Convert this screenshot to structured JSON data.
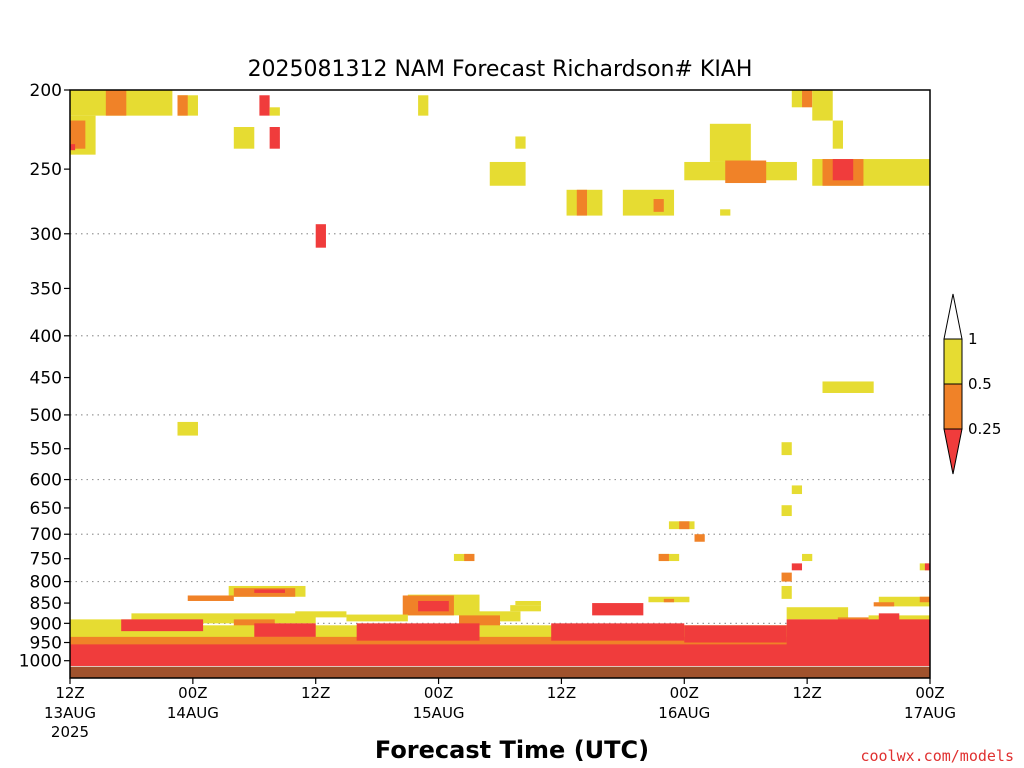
{
  "chart_data": {
    "type": "heatmap",
    "title": "2025081312 NAM Forecast Richardson# KIAH",
    "xlabel": "Forecast Time (UTC)",
    "credit": "coolwx.com/models",
    "y_scale": "log",
    "y_inverted": true,
    "ylim": [
      200,
      1050
    ],
    "y_ticks": [
      200,
      250,
      300,
      350,
      400,
      450,
      500,
      550,
      600,
      650,
      700,
      750,
      800,
      850,
      900,
      950,
      1000
    ],
    "y_gridlines": [
      300,
      400,
      500,
      600,
      700,
      800,
      900
    ],
    "xlim_hours": [
      0,
      84
    ],
    "x_ticks": [
      {
        "hour": 0,
        "label": "12Z",
        "date": "13AUG",
        "year": "2025"
      },
      {
        "hour": 12,
        "label": "00Z",
        "date": "14AUG",
        "year": ""
      },
      {
        "hour": 24,
        "label": "12Z",
        "date": "",
        "year": ""
      },
      {
        "hour": 36,
        "label": "00Z",
        "date": "15AUG",
        "year": ""
      },
      {
        "hour": 48,
        "label": "12Z",
        "date": "",
        "year": ""
      },
      {
        "hour": 60,
        "label": "00Z",
        "date": "16AUG",
        "year": ""
      },
      {
        "hour": 72,
        "label": "12Z",
        "date": "",
        "year": ""
      },
      {
        "hour": 84,
        "label": "00Z",
        "date": "17AUG",
        "year": ""
      }
    ],
    "legend": {
      "placement": "right",
      "labels": [
        "1",
        "0.5",
        "0.25"
      ],
      "bins": [
        {
          "range": "0.5-1",
          "color": "#e6dc32"
        },
        {
          "range": "0.25-0.5",
          "color": "#f08228"
        },
        {
          "range": "<0.25",
          "color": "#f03c3c"
        }
      ],
      "over_color": "#ffffff"
    },
    "colors": {
      "yellow": "#e6dc32",
      "orange": "#f08228",
      "red": "#f03c3c",
      "ground": "#a0522d"
    },
    "cells": [
      {
        "c": "y",
        "t": [
          0,
          10
        ],
        "p": [
          200,
          215
        ]
      },
      {
        "c": "o",
        "t": [
          3.5,
          5.5
        ],
        "p": [
          200,
          215
        ]
      },
      {
        "c": "y",
        "t": [
          10.5,
          12.5
        ],
        "p": [
          203,
          215
        ]
      },
      {
        "c": "o",
        "t": [
          10.5,
          11.5
        ],
        "p": [
          203,
          215
        ]
      },
      {
        "c": "r",
        "t": [
          18.5,
          19.5
        ],
        "p": [
          203,
          215
        ]
      },
      {
        "c": "y",
        "t": [
          19.5,
          20.5
        ],
        "p": [
          210,
          215
        ]
      },
      {
        "c": "y",
        "t": [
          0,
          2.5
        ],
        "p": [
          215,
          240
        ]
      },
      {
        "c": "o",
        "t": [
          0,
          1.5
        ],
        "p": [
          218,
          236
        ]
      },
      {
        "c": "r",
        "t": [
          0,
          0.5
        ],
        "p": [
          233,
          237
        ]
      },
      {
        "c": "y",
        "t": [
          16,
          18
        ],
        "p": [
          222,
          236
        ]
      },
      {
        "c": "r",
        "t": [
          19.5,
          20.5
        ],
        "p": [
          222,
          236
        ]
      },
      {
        "c": "y",
        "t": [
          34,
          35
        ],
        "p": [
          203,
          215
        ]
      },
      {
        "c": "y",
        "t": [
          43.5,
          44.5
        ],
        "p": [
          228,
          236
        ]
      },
      {
        "c": "y",
        "t": [
          41,
          44.5
        ],
        "p": [
          245,
          262
        ]
      },
      {
        "c": "y",
        "t": [
          48.5,
          52
        ],
        "p": [
          265,
          285
        ]
      },
      {
        "c": "o",
        "t": [
          49.5,
          50.5
        ],
        "p": [
          265,
          285
        ]
      },
      {
        "c": "y",
        "t": [
          54,
          59
        ],
        "p": [
          265,
          285
        ]
      },
      {
        "c": "o",
        "t": [
          57,
          58
        ],
        "p": [
          272,
          282
        ]
      },
      {
        "c": "y",
        "t": [
          60,
          71
        ],
        "p": [
          245,
          258
        ]
      },
      {
        "c": "y",
        "t": [
          62.5,
          66.5
        ],
        "p": [
          220,
          245
        ]
      },
      {
        "c": "o",
        "t": [
          64,
          68
        ],
        "p": [
          244,
          260
        ]
      },
      {
        "c": "y",
        "t": [
          63.5,
          64.5
        ],
        "p": [
          280,
          285
        ]
      },
      {
        "c": "y",
        "t": [
          70.5,
          71.5
        ],
        "p": [
          200,
          210
        ]
      },
      {
        "c": "o",
        "t": [
          71.5,
          72.5
        ],
        "p": [
          200,
          210
        ]
      },
      {
        "c": "y",
        "t": [
          72.5,
          74.5
        ],
        "p": [
          200,
          218
        ]
      },
      {
        "c": "y",
        "t": [
          74.5,
          75.5
        ],
        "p": [
          218,
          236
        ]
      },
      {
        "c": "y",
        "t": [
          72.5,
          84
        ],
        "p": [
          243,
          262
        ]
      },
      {
        "c": "o",
        "t": [
          73.5,
          77.5
        ],
        "p": [
          243,
          262
        ]
      },
      {
        "c": "r",
        "t": [
          74.5,
          76.5
        ],
        "p": [
          243,
          258
        ]
      },
      {
        "c": "r",
        "t": [
          24,
          25
        ],
        "p": [
          292,
          312
        ]
      },
      {
        "c": "y",
        "t": [
          10.5,
          12.5
        ],
        "p": [
          510,
          530
        ]
      },
      {
        "c": "y",
        "t": [
          73.5,
          78.5
        ],
        "p": [
          455,
          470
        ]
      },
      {
        "c": "y",
        "t": [
          69.5,
          70.5
        ],
        "p": [
          540,
          560
        ]
      },
      {
        "c": "y",
        "t": [
          70.5,
          71.5
        ],
        "p": [
          610,
          625
        ]
      },
      {
        "c": "y",
        "t": [
          69.5,
          70.5
        ],
        "p": [
          645,
          665
        ]
      },
      {
        "c": "y",
        "t": [
          58.5,
          61
        ],
        "p": [
          675,
          690
        ]
      },
      {
        "c": "o",
        "t": [
          59.5,
          60.5
        ],
        "p": [
          675,
          690
        ]
      },
      {
        "c": "o",
        "t": [
          61,
          62
        ],
        "p": [
          700,
          715
        ]
      },
      {
        "c": "y",
        "t": [
          37.5,
          39.5
        ],
        "p": [
          740,
          755
        ]
      },
      {
        "c": "o",
        "t": [
          38.5,
          39.5
        ],
        "p": [
          740,
          755
        ]
      },
      {
        "c": "y",
        "t": [
          57.5,
          59.5
        ],
        "p": [
          740,
          755
        ]
      },
      {
        "c": "o",
        "t": [
          57.5,
          58.5
        ],
        "p": [
          740,
          755
        ]
      },
      {
        "c": "y",
        "t": [
          71.5,
          72.5
        ],
        "p": [
          740,
          755
        ]
      },
      {
        "c": "r",
        "t": [
          70.5,
          71.5
        ],
        "p": [
          760,
          775
        ]
      },
      {
        "c": "y",
        "t": [
          83,
          84
        ],
        "p": [
          760,
          775
        ]
      },
      {
        "c": "r",
        "t": [
          83.5,
          84
        ],
        "p": [
          760,
          775
        ]
      },
      {
        "c": "o",
        "t": [
          69.5,
          70.5
        ],
        "p": [
          780,
          800
        ]
      },
      {
        "c": "y",
        "t": [
          69.5,
          70.5
        ],
        "p": [
          810,
          840
        ]
      },
      {
        "c": "y",
        "t": [
          15.5,
          23
        ],
        "p": [
          810,
          835
        ]
      },
      {
        "c": "o",
        "t": [
          16,
          22
        ],
        "p": [
          815,
          835
        ]
      },
      {
        "c": "r",
        "t": [
          18,
          21
        ],
        "p": [
          818,
          826
        ]
      },
      {
        "c": "o",
        "t": [
          11.5,
          16
        ],
        "p": [
          832,
          845
        ]
      },
      {
        "c": "y",
        "t": [
          33,
          40
        ],
        "p": [
          830,
          880
        ]
      },
      {
        "c": "o",
        "t": [
          32.5,
          37.5
        ],
        "p": [
          832,
          880
        ]
      },
      {
        "c": "r",
        "t": [
          34,
          37
        ],
        "p": [
          845,
          870
        ]
      },
      {
        "c": "y",
        "t": [
          43.5,
          46
        ],
        "p": [
          845,
          855
        ]
      },
      {
        "c": "y",
        "t": [
          56.5,
          60.5
        ],
        "p": [
          835,
          848
        ]
      },
      {
        "c": "o",
        "t": [
          58,
          59
        ],
        "p": [
          840,
          848
        ]
      },
      {
        "c": "y",
        "t": [
          79,
          84
        ],
        "p": [
          835,
          858
        ]
      },
      {
        "c": "o",
        "t": [
          78.5,
          80.5
        ],
        "p": [
          848,
          858
        ]
      },
      {
        "c": "o",
        "t": [
          83,
          84
        ],
        "p": [
          835,
          848
        ]
      },
      {
        "c": "y",
        "t": [
          0,
          6
        ],
        "p": [
          890,
          910
        ]
      },
      {
        "c": "y",
        "t": [
          6,
          24
        ],
        "p": [
          875,
          900
        ]
      },
      {
        "c": "y",
        "t": [
          22,
          27
        ],
        "p": [
          870,
          885
        ]
      },
      {
        "c": "y",
        "t": [
          27,
          33
        ],
        "p": [
          878,
          895
        ]
      },
      {
        "c": "y",
        "t": [
          38,
          44
        ],
        "p": [
          870,
          895
        ]
      },
      {
        "c": "y",
        "t": [
          43,
          46
        ],
        "p": [
          855,
          870
        ]
      },
      {
        "c": "o",
        "t": [
          38,
          42
        ],
        "p": [
          880,
          915
        ]
      },
      {
        "c": "o",
        "t": [
          16,
          20
        ],
        "p": [
          890,
          912
        ]
      },
      {
        "c": "y",
        "t": [
          70,
          76
        ],
        "p": [
          860,
          890
        ]
      },
      {
        "c": "y",
        "t": [
          78,
          84
        ],
        "p": [
          880,
          910
        ]
      },
      {
        "c": "o",
        "t": [
          75,
          78
        ],
        "p": [
          885,
          905
        ]
      },
      {
        "c": "r",
        "t": [
          79,
          81
        ],
        "p": [
          875,
          895
        ]
      },
      {
        "c": "y",
        "t": [
          0,
          84
        ],
        "p": [
          905,
          980
        ]
      },
      {
        "c": "o",
        "t": [
          0,
          84
        ],
        "p": [
          935,
          990
        ]
      },
      {
        "c": "r",
        "t": [
          0,
          84
        ],
        "p": [
          955,
          1015
        ]
      },
      {
        "c": "r",
        "t": [
          5,
          13
        ],
        "p": [
          890,
          920
        ]
      },
      {
        "c": "r",
        "t": [
          18,
          24
        ],
        "p": [
          900,
          935
        ]
      },
      {
        "c": "r",
        "t": [
          28,
          40
        ],
        "p": [
          900,
          945
        ]
      },
      {
        "c": "r",
        "t": [
          47,
          60
        ],
        "p": [
          900,
          945
        ]
      },
      {
        "c": "r",
        "t": [
          60,
          70
        ],
        "p": [
          905,
          950
        ]
      },
      {
        "c": "r",
        "t": [
          70,
          84
        ],
        "p": [
          890,
          960
        ]
      },
      {
        "c": "r",
        "t": [
          51,
          56
        ],
        "p": [
          850,
          880
        ]
      },
      {
        "c": "r",
        "t": [
          53,
          55
        ],
        "p": [
          855,
          870
        ]
      }
    ]
  }
}
